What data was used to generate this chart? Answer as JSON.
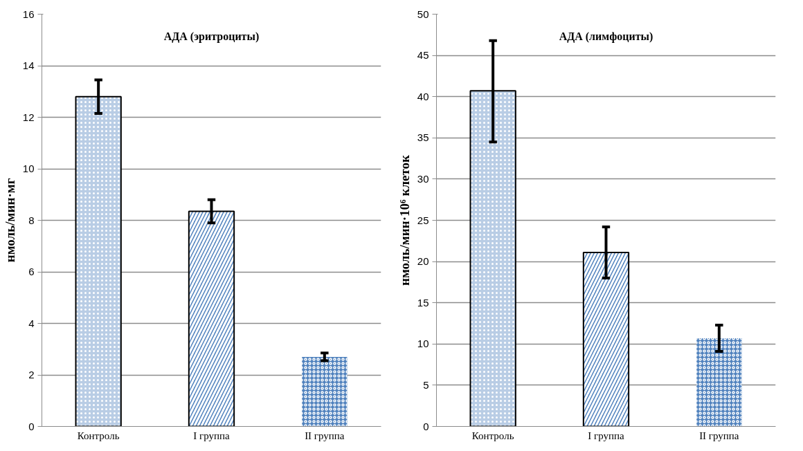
{
  "chart_data": [
    {
      "type": "bar",
      "title": "АДА (эритроциты)",
      "ylabel": "нмоль/мин·мг",
      "categories": [
        "Контроль",
        "I группа",
        "II группа"
      ],
      "values": [
        12.8,
        8.35,
        2.7
      ],
      "errors": [
        0.65,
        0.45,
        0.15
      ],
      "colors": [
        "#b9cde5",
        "#4f81bd",
        "#4f81bd"
      ],
      "ylim": [
        0,
        16
      ],
      "yticks": [
        0,
        2,
        4,
        6,
        8,
        10,
        12,
        14,
        16
      ],
      "grid": "y"
    },
    {
      "type": "bar",
      "title": "АДА (лимфоциты)",
      "ylabel": "нмоль/мин·10⁶ клеток",
      "categories": [
        "Контроль",
        "I группа",
        "II группа"
      ],
      "values": [
        40.7,
        21.1,
        10.7
      ],
      "errors": [
        [
          34.5,
          46.8
        ],
        3.1,
        1.6
      ],
      "colors": [
        "#b9cde5",
        "#4f81bd",
        "#4f81bd"
      ],
      "ylim": [
        0,
        50
      ],
      "yticks": [
        0,
        5,
        10,
        15,
        20,
        25,
        30,
        35,
        40,
        45,
        50
      ],
      "grid": "y"
    }
  ]
}
